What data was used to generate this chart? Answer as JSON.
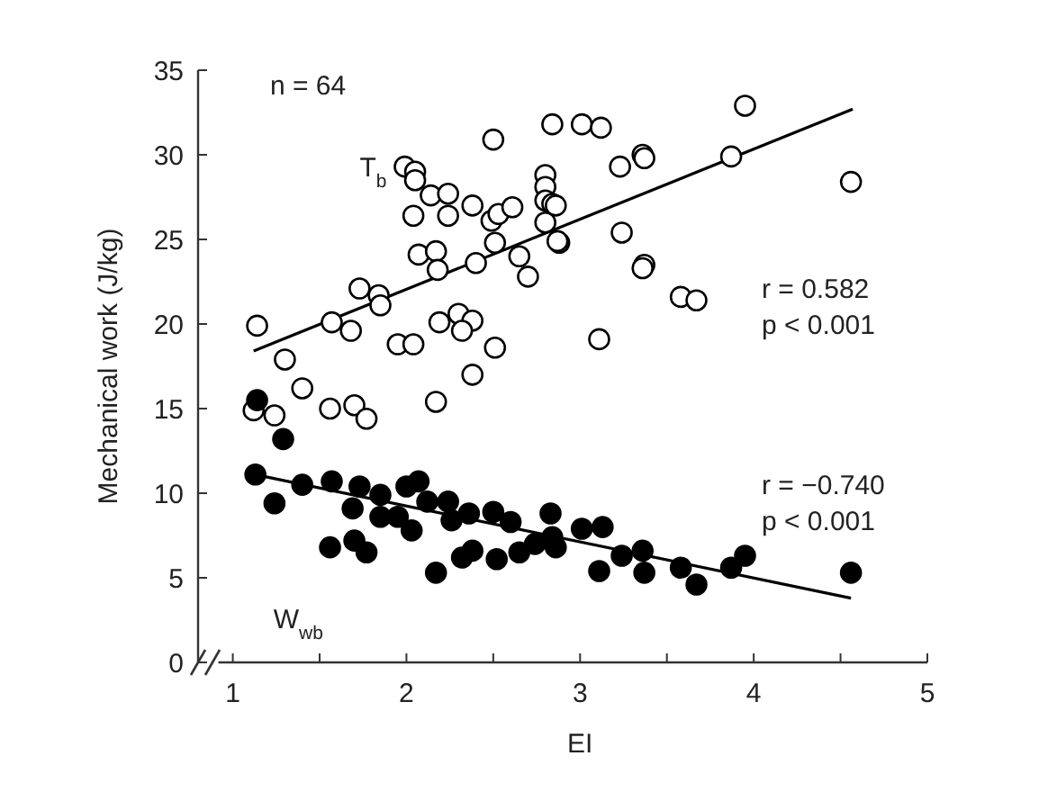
{
  "chart_data": {
    "type": "scatter",
    "xlabel": "EI",
    "ylabel": "Mechanical work (J/kg)",
    "xlim": [
      0.8,
      5
    ],
    "ylim": [
      0,
      35
    ],
    "xticks": [
      1,
      {
        "value": 1.5,
        "label": null
      },
      2,
      {
        "value": 2.5,
        "label": null
      },
      3,
      {
        "value": 3.5,
        "label": null
      },
      4,
      {
        "value": 4.5,
        "label": null
      },
      5
    ],
    "yticks": [
      0,
      5,
      10,
      15,
      20,
      25,
      30,
      35
    ],
    "marker": "circle",
    "grid": false,
    "legend": false,
    "annotations": [
      "n = 64",
      "r = 0.582",
      "p < 0.001",
      "r = −0.740",
      "p < 0.001"
    ],
    "series": [
      {
        "name": "T$_{b}$",
        "color": "#ffffff",
        "x": [
          1.14,
          1.3,
          1.4,
          1.12,
          1.24,
          1.56,
          1.7,
          1.77,
          1.57,
          1.68,
          1.73,
          1.84,
          1.85,
          1.95,
          2.04,
          2.17,
          1.99,
          2.05,
          2.05,
          2.14,
          2.24,
          2.04,
          2.24,
          2.07,
          2.17,
          2.18,
          2.19,
          2.3,
          2.38,
          2.32,
          2.51,
          2.38,
          2.38,
          2.49,
          2.53,
          2.61,
          2.51,
          2.4,
          2.65,
          2.7,
          2.5,
          2.84,
          2.8,
          2.8,
          2.8,
          2.84,
          2.8,
          2.88,
          3.01,
          3.12,
          3.95,
          3.23,
          3.36,
          3.37,
          3.87,
          4.56,
          2.86,
          2.87,
          3.24,
          3.37,
          3.36,
          3.58,
          3.67,
          3.11
        ],
        "values": [
          19.9,
          17.9,
          16.2,
          14.9,
          14.6,
          15.0,
          15.2,
          14.4,
          20.1,
          19.6,
          22.1,
          21.7,
          21.1,
          18.8,
          18.8,
          15.4,
          29.3,
          29.0,
          28.5,
          27.6,
          27.7,
          26.4,
          26.4,
          24.1,
          24.3,
          23.2,
          20.1,
          20.6,
          20.2,
          19.6,
          18.6,
          17.0,
          27.0,
          26.1,
          26.5,
          26.9,
          24.8,
          23.6,
          24.0,
          22.8,
          30.9,
          31.8,
          28.8,
          28.1,
          27.3,
          27.1,
          26.0,
          24.8,
          31.8,
          31.6,
          32.9,
          29.3,
          30.0,
          29.8,
          29.9,
          28.4,
          27.0,
          24.9,
          25.4,
          23.5,
          23.3,
          21.6,
          21.4,
          19.1
        ]
      },
      {
        "name": "W$_{wb}$",
        "color": "#000000",
        "x": [
          1.14,
          1.29,
          1.13,
          1.24,
          1.4,
          1.57,
          1.56,
          1.7,
          1.77,
          1.73,
          1.69,
          1.85,
          1.85,
          2.0,
          2.07,
          2.03,
          1.95,
          2.12,
          2.17,
          2.24,
          2.26,
          2.36,
          2.32,
          2.38,
          2.5,
          2.52,
          2.6,
          2.65,
          2.74,
          2.83,
          2.84,
          2.74,
          2.86,
          3.01,
          3.13,
          3.11,
          3.24,
          3.36,
          3.37,
          3.58,
          3.67,
          3.87,
          3.95,
          4.56
        ],
        "values": [
          15.5,
          13.2,
          11.1,
          9.4,
          10.5,
          10.7,
          6.8,
          7.2,
          6.5,
          10.4,
          9.1,
          9.9,
          8.6,
          10.4,
          10.7,
          7.8,
          8.6,
          9.5,
          5.3,
          9.5,
          8.4,
          8.8,
          6.2,
          6.6,
          8.9,
          6.1,
          8.3,
          6.5,
          null,
          8.8,
          7.4,
          7.0,
          6.8,
          7.9,
          8.0,
          5.4,
          6.3,
          6.6,
          5.3,
          5.6,
          4.6,
          5.6,
          6.3,
          5.3
        ]
      },
      {
        "type": "line",
        "color": "#000000",
        "marker": "none",
        "x": [
          1.12,
          4.57
        ],
        "values": [
          18.4,
          32.7
        ]
      },
      {
        "type": "line",
        "color": "#000000",
        "marker": "none",
        "x": [
          1.13,
          4.56
        ],
        "values": [
          11.1,
          3.8
        ]
      }
    ]
  }
}
